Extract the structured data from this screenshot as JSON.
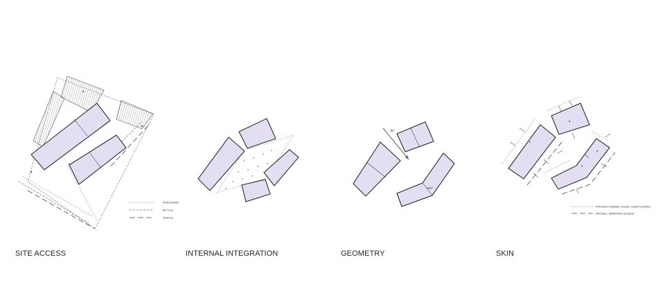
{
  "panels": [
    {
      "caption": "SITE ACCESS"
    },
    {
      "caption": "INTERNAL INTEGRATION"
    },
    {
      "caption": "GEOMETRY"
    },
    {
      "caption": "SKIN"
    }
  ],
  "site_access": {
    "legend": [
      "PEDESTRIAN",
      "BICYCLE",
      "VEHICLE"
    ]
  },
  "geometry": {
    "angles": [
      "30°",
      "150°"
    ]
  },
  "skin": {
    "legend": [
      "FROSTED CHANNEL GLASS, CLEAR GLAZING",
      "DRYWALL, MIRRORED GLAZING"
    ]
  },
  "colors": {
    "building_fill": "#e4def2",
    "stroke": "#2a2a2a",
    "marker": "#5a54a8"
  }
}
